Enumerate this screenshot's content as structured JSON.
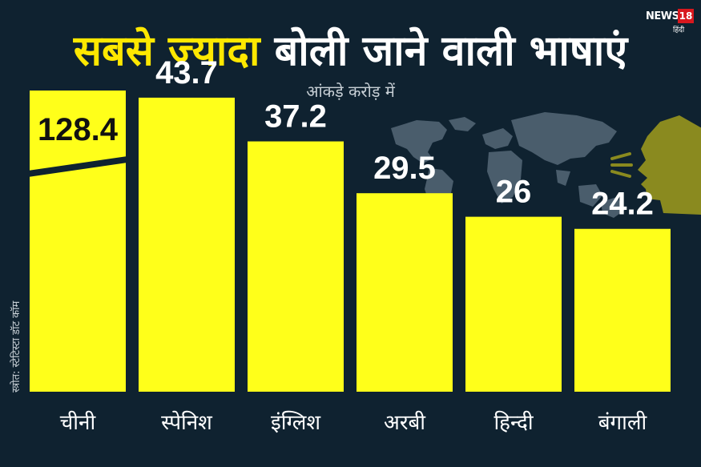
{
  "header": {
    "title_highlight": "सबसे ज्यादा",
    "title_rest": "बोली जाने वाली भाषाएं",
    "subtitle": "आंकड़े करोड़ में"
  },
  "logo": {
    "brand": "NEWS",
    "number": "18",
    "language": "हिंदी"
  },
  "source": "स्त्रोत: स्टेटिस्टा डॉट कॉम",
  "colors": {
    "background": "#0f2230",
    "bar": "#ffff1a",
    "title_highlight": "#ffe800",
    "map": "#4a5d6c",
    "head": "#8a8a1f"
  },
  "chart_data": {
    "type": "bar",
    "categories": [
      "चीनी",
      "स्पेनिश",
      "इंग्लिश",
      "अरबी",
      "हिन्दी",
      "बंगाली"
    ],
    "values": [
      128.4,
      43.7,
      37.2,
      29.5,
      26,
      24.2
    ],
    "value_labels": [
      "128.4",
      "43.7",
      "37.2",
      "29.5",
      "26",
      "24.2"
    ],
    "title": "सबसे ज्यादा बोली जाने वाली भाषाएं",
    "subtitle": "आंकड़े करोड़ में",
    "xlabel": "",
    "ylabel": "",
    "axis_break": true,
    "grid": false,
    "legend": "none"
  }
}
